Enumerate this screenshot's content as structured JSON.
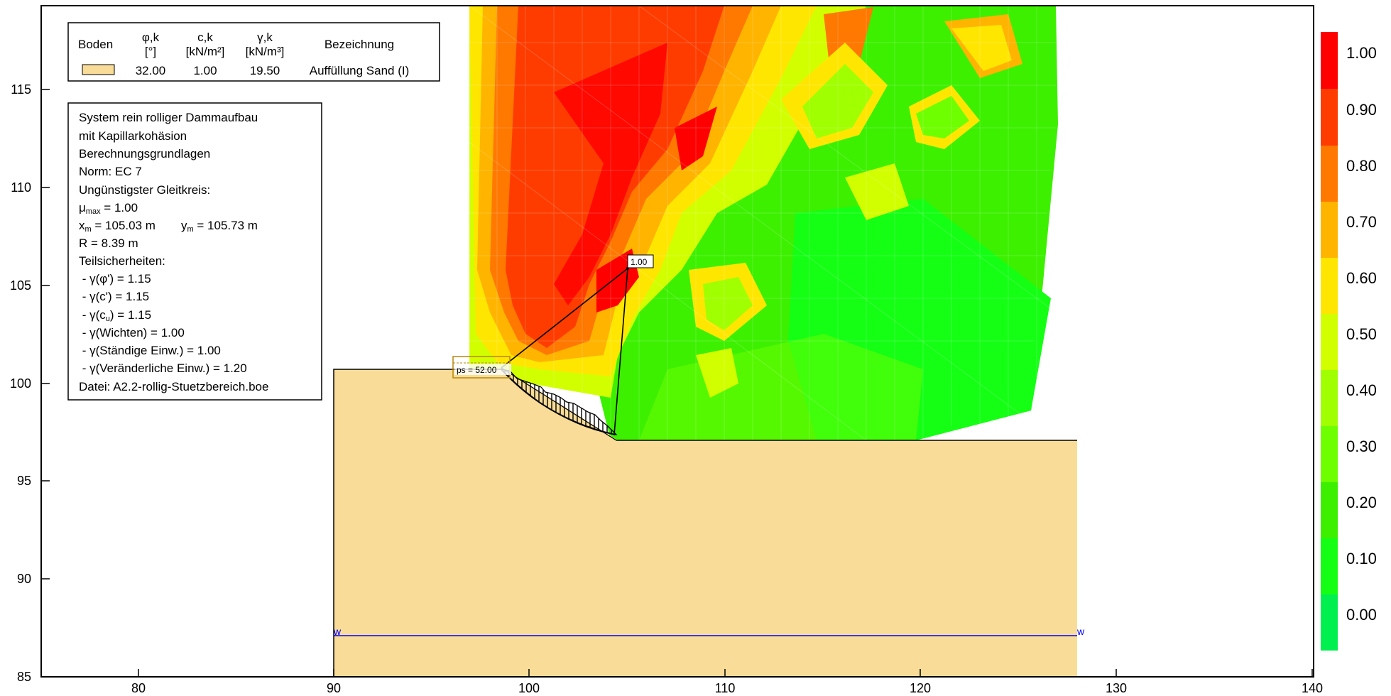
{
  "axes": {
    "x_ticks": [
      "80",
      "90",
      "100",
      "110",
      "120",
      "130",
      "140"
    ],
    "y_ticks": [
      "85",
      "90",
      "95",
      "100",
      "105",
      "110",
      "115"
    ]
  },
  "legend": {
    "headers": {
      "boden": "Boden",
      "phi": "φ,k",
      "phi_unit": "[°]",
      "c": "c,k",
      "c_unit": "[kN/m²]",
      "gamma": "γ,k",
      "gamma_unit": "[kN/m³]",
      "bezeichnung": "Bezeichnung"
    },
    "row": {
      "phi": "32.00",
      "c": "1.00",
      "gamma": "19.50",
      "name": "Auffüllung Sand (I)",
      "swatch_color": "#f8dc97"
    }
  },
  "info": {
    "lines": [
      "System rein rolliger Dammaufbau",
      "mit Kapillarkohäsion",
      "Berechnungsgrundlagen",
      "Norm:  EC 7",
      "Ungünstigster Gleitkreis:"
    ],
    "mu_prefix": "μ",
    "mu_sub": "max",
    "mu_value": " = 1.00",
    "xm_prefix": "x",
    "xm_sub": "m",
    "xm_value": " = 105.03 m",
    "ym_prefix": "y",
    "ym_sub": "m",
    "ym_value": " = 105.73 m",
    "lines2": [
      "R = 8.39 m",
      "Teilsicherheiten:",
      " - γ(φ') = 1.15",
      " - γ(c') = 1.15"
    ],
    "cu_prefix": " - γ(c",
    "cu_sub": "u",
    "cu_suffix": ") = 1.15",
    "lines3": [
      " - γ(Wichten) = 1.00",
      " - γ(Ständige Einw.) = 1.00",
      " - γ(Veränderliche Einw.) = 1.20",
      "Datei: A2.2-rollig-Stuetzbereich.boe"
    ]
  },
  "annotations": {
    "mu_label": "1.00",
    "load_label": "ps = 52.00",
    "water_left": "w",
    "water_right": "w"
  },
  "colorbar": {
    "labels": [
      "1.00",
      "0.90",
      "0.80",
      "0.70",
      "0.60",
      "0.50",
      "0.40",
      "0.30",
      "0.20",
      "0.10",
      "0.00"
    ],
    "colors": [
      "#ff0000",
      "#ff3c00",
      "#ff7800",
      "#ffb400",
      "#ffe600",
      "#d2ff00",
      "#a0ff00",
      "#6eff00",
      "#3cf000",
      "#14ff14",
      "#00f050"
    ]
  },
  "colors": {
    "soil": "#f8dc97",
    "water": "#0000ff"
  }
}
